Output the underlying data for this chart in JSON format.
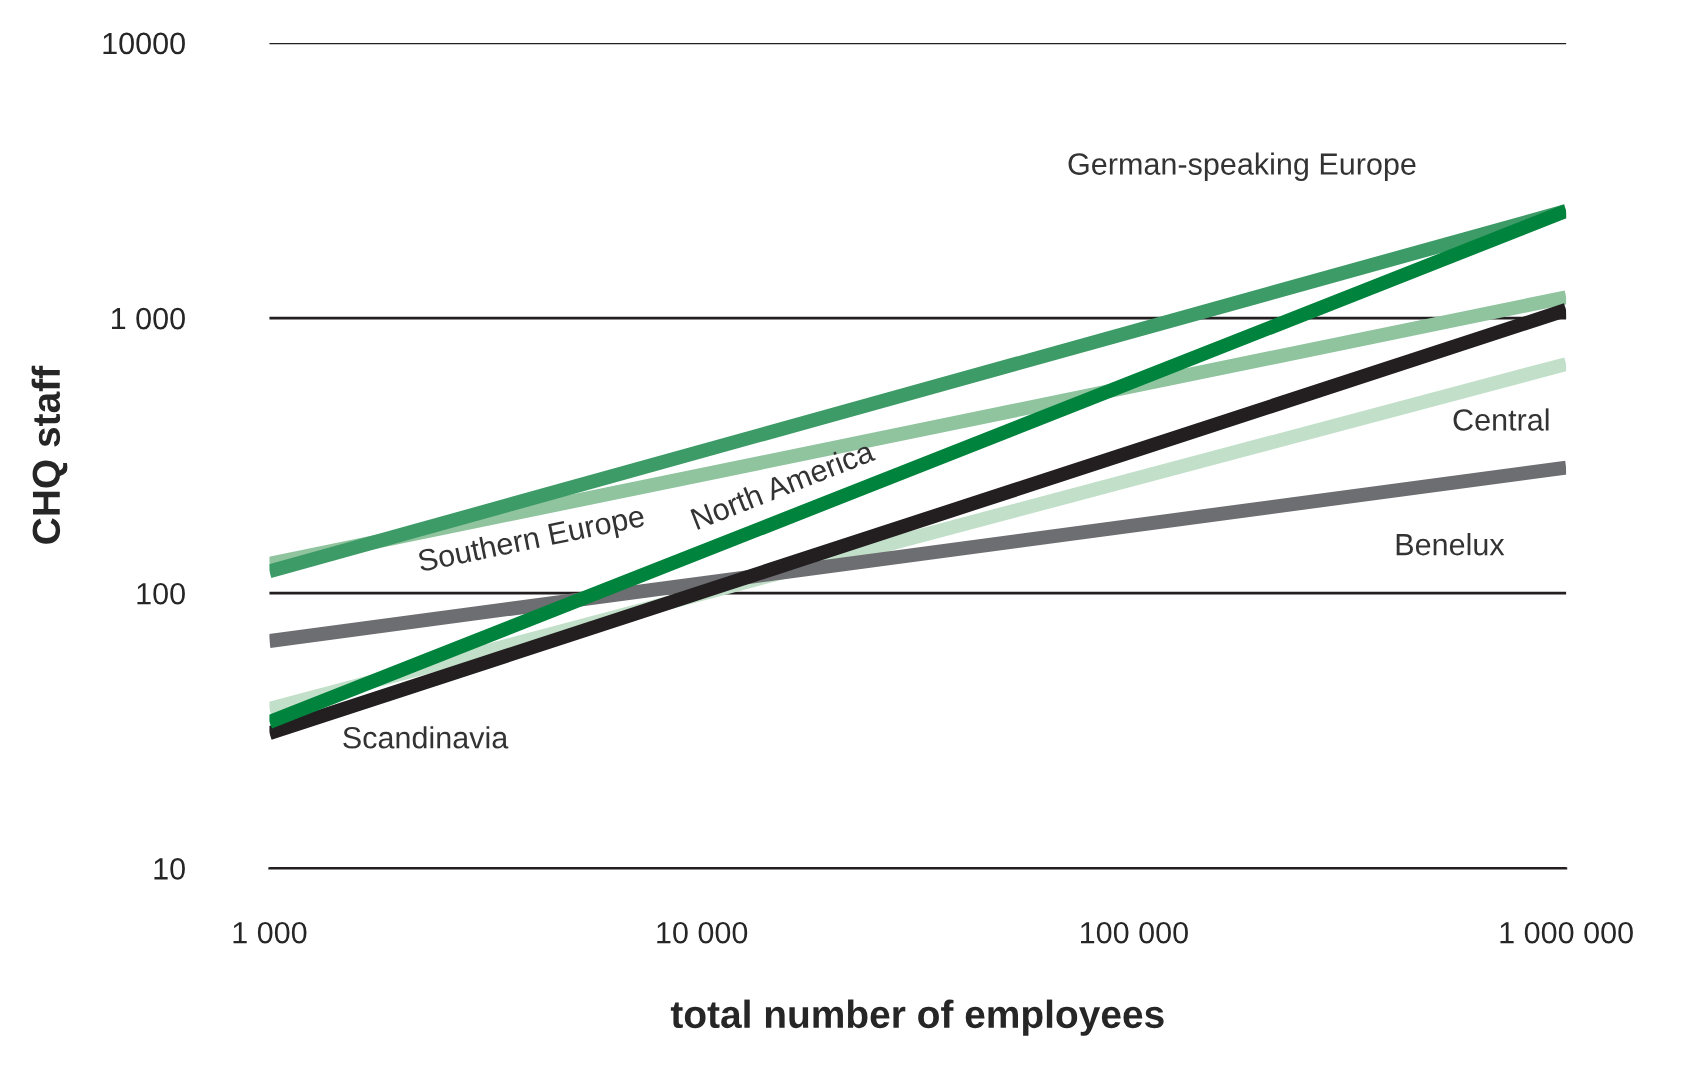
{
  "chart_data": {
    "type": "line",
    "xlabel": "total number of employees",
    "ylabel": "CHQ staff",
    "log": "xy",
    "grid": "y",
    "legend": false,
    "marker": "none",
    "line_style": "solid",
    "x": [
      1000,
      1000000
    ],
    "xlim": [
      1000,
      1000000
    ],
    "xticks": [
      {
        "value": 1000,
        "label": "1 000"
      },
      {
        "value": 10000,
        "label": "10 000"
      },
      {
        "value": 100000,
        "label": "100 000"
      },
      {
        "value": 1000000,
        "label": "1 000 000"
      }
    ],
    "ylim": [
      10,
      10000
    ],
    "yticks": [
      10,
      100,
      {
        "value": 1000,
        "label": "1 000"
      },
      10000
    ],
    "series": [
      {
        "name": "Central",
        "color": "#c2e0c9",
        "values": [
          38,
          680
        ]
      },
      {
        "name": "Benelux",
        "color": "#6d6e71",
        "values": [
          67,
          286
        ]
      },
      {
        "name": "Southern Europe",
        "color": "#8fc49f",
        "values": [
          128,
          1190
        ]
      },
      {
        "name": "German-speaking Europe",
        "color": "#3d9b67",
        "values": [
          120,
          2450
        ]
      },
      {
        "name": "Scandinavia",
        "color": "#231f20",
        "values": [
          31,
          1070
        ]
      },
      {
        "name": "North America",
        "color": "#00843d",
        "values": [
          34,
          2450
        ]
      }
    ]
  }
}
